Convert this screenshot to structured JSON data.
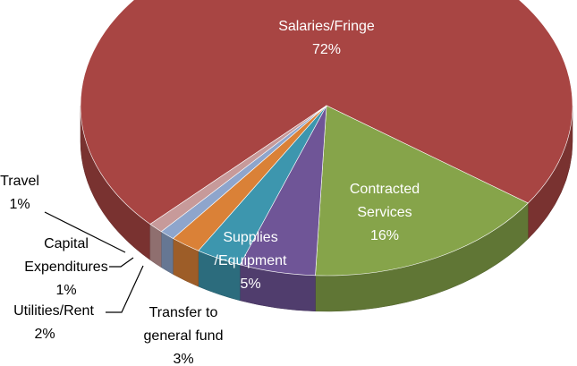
{
  "chart_data": {
    "type": "pie3d",
    "categories": [
      "Salaries/Fringe",
      "Contracted\nServices",
      "Supplies\n/Equipment",
      "Transfer to\ngeneral fund",
      "Utilities/Rent",
      "Capital\nExpenditures",
      "Travel"
    ],
    "values": [
      72,
      16,
      5,
      3,
      2,
      1,
      1
    ],
    "value_labels": [
      "72%",
      "16%",
      "5%",
      "3%",
      "2%",
      "1%",
      "1%"
    ],
    "colors": [
      "#a84543",
      "#86a44a",
      "#6f5597",
      "#3d96ae",
      "#da8137",
      "#8ea5cc",
      "#c79a9a"
    ]
  }
}
